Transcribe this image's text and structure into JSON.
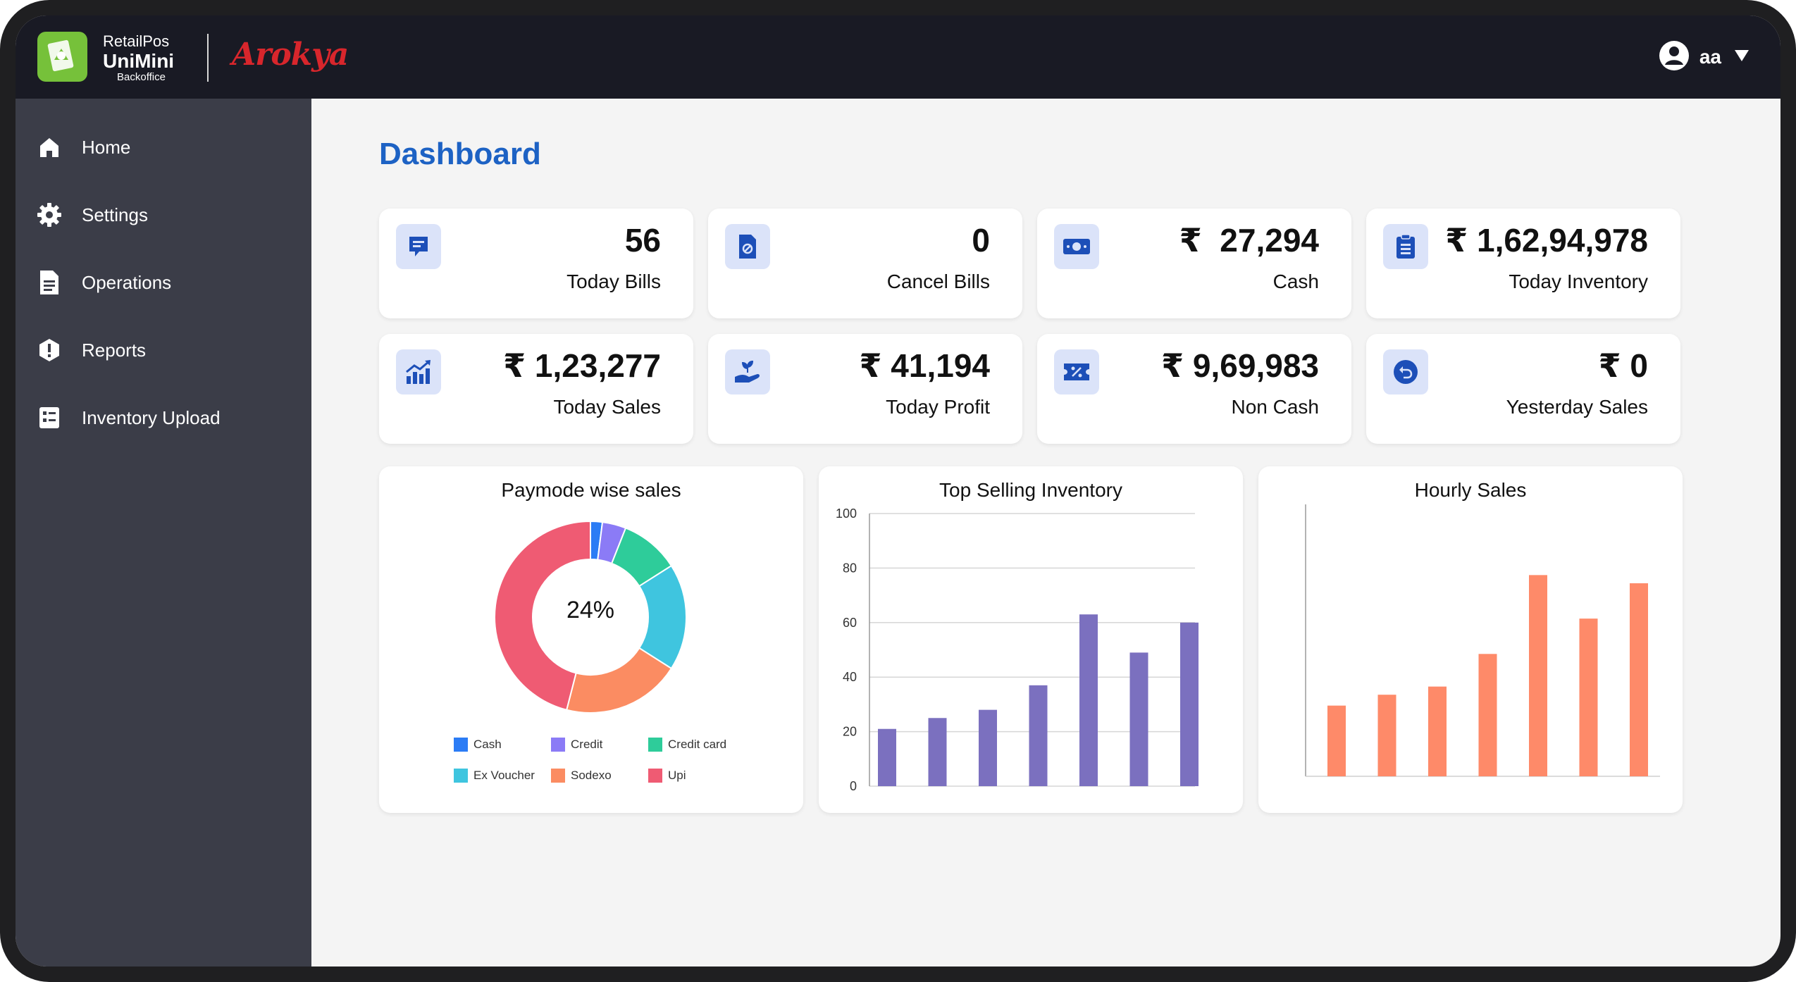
{
  "header": {
    "brand_top": "RetailPos",
    "brand_main": "UniMini",
    "brand_sub": "Backoffice",
    "partner_logo": "Arokya",
    "user_name": "aa"
  },
  "sidebar": {
    "items": [
      {
        "label": "Home",
        "icon": "home-icon"
      },
      {
        "label": "Settings",
        "icon": "gear-icon"
      },
      {
        "label": "Operations",
        "icon": "document-icon"
      },
      {
        "label": "Reports",
        "icon": "alert-icon"
      },
      {
        "label": "Inventory Upload",
        "icon": "checklist-icon"
      }
    ]
  },
  "page": {
    "title": "Dashboard"
  },
  "cards": [
    {
      "value": "56",
      "label": "Today Bills",
      "icon": "receipt-icon"
    },
    {
      "value": "0",
      "label": "Cancel Bills",
      "icon": "cancel-document-icon"
    },
    {
      "value": "₹  27,294",
      "label": "Cash",
      "icon": "cash-icon"
    },
    {
      "value": "₹ 1,62,94,978",
      "label": "Today Inventory",
      "icon": "clipboard-icon"
    },
    {
      "value": "₹ 1,23,277",
      "label": "Today Sales",
      "icon": "sales-chart-icon"
    },
    {
      "value": "₹ 41,194",
      "label": "Today Profit",
      "icon": "profit-hand-icon"
    },
    {
      "value": "₹ 9,69,983",
      "label": "Non Cash",
      "icon": "discount-ticket-icon"
    },
    {
      "value": "₹ 0",
      "label": "Yesterday Sales",
      "icon": "undo-icon"
    }
  ],
  "colors": {
    "accent": "#1d62c4",
    "topbar": "#191a24",
    "sidebar": "#3b3d48",
    "bar_purple": "#7b70bf",
    "bar_orange": "#fe8a69"
  },
  "chart_data": [
    {
      "type": "pie",
      "title": "Paymode wise sales",
      "center_label": "24%",
      "categories": [
        "Cash",
        "Credit",
        "Credit card",
        "Ex Voucher",
        "Sodexo",
        "Upi"
      ],
      "values": [
        2,
        4,
        10,
        18,
        20,
        46
      ],
      "colors": [
        "#2b7cf5",
        "#8b7bf6",
        "#2ecc9a",
        "#3fc5df",
        "#fb8c62",
        "#ef5b73"
      ],
      "legend": "bottom"
    },
    {
      "type": "bar",
      "title": "Top Selling Inventory",
      "categories": [
        "",
        "",
        "",
        "",
        "",
        "",
        ""
      ],
      "values": [
        21,
        25,
        28,
        37,
        63,
        49,
        60
      ],
      "ylim": [
        0,
        100
      ],
      "yticks": [
        0,
        20,
        40,
        60,
        80,
        100
      ],
      "grid": true
    },
    {
      "type": "bar",
      "title": "Hourly Sales",
      "categories": [
        "",
        "",
        "",
        "",
        "",
        "",
        ""
      ],
      "values": [
        26,
        30,
        33,
        45,
        74,
        58,
        71
      ],
      "grid": false
    }
  ]
}
